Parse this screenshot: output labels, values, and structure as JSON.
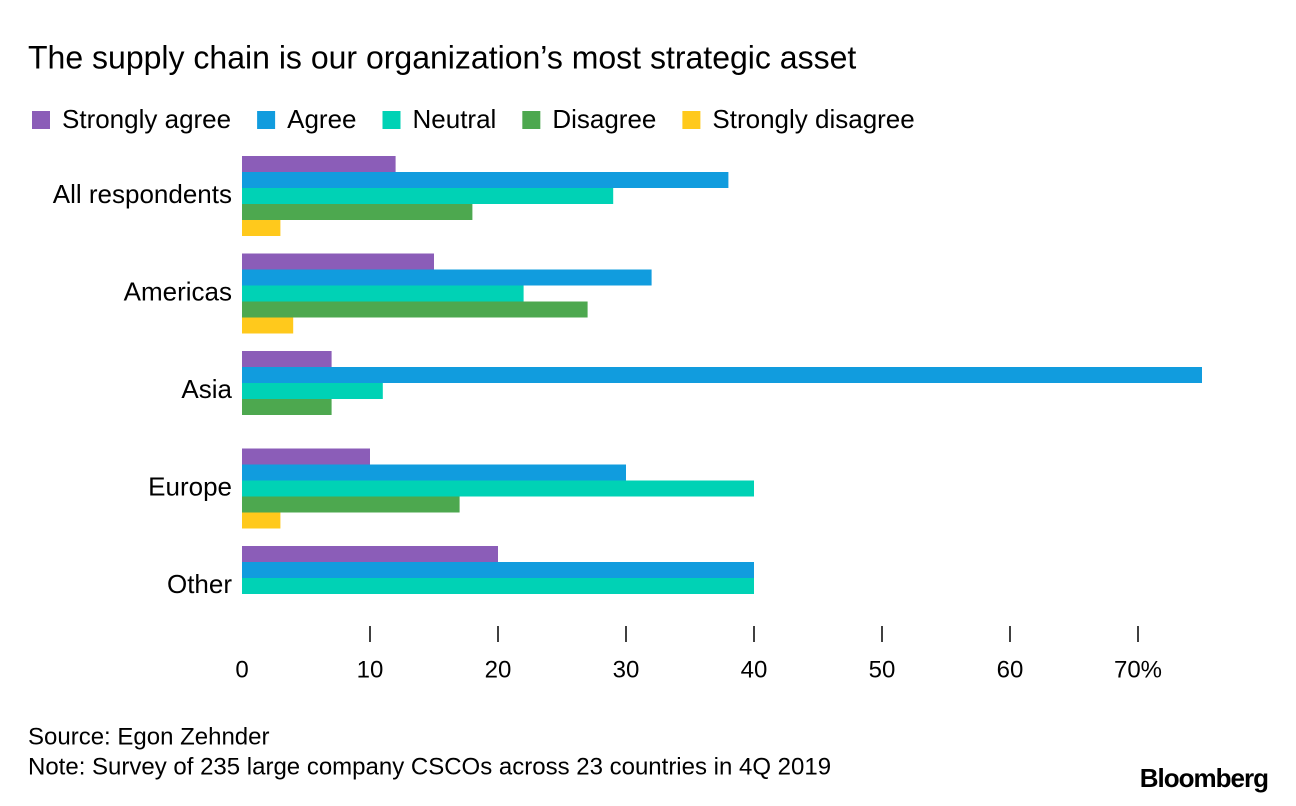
{
  "chart_data": {
    "type": "grouped-hbar",
    "title": "The supply chain is our organization’s most strategic asset",
    "categories": [
      "All respondents",
      "Americas",
      "Asia",
      "Europe",
      "Other"
    ],
    "series": [
      {
        "name": "Strongly agree",
        "color": "#8b5db8",
        "values": [
          12,
          15,
          7,
          10,
          20
        ]
      },
      {
        "name": "Agree",
        "color": "#119cde",
        "values": [
          38,
          32,
          75,
          30,
          40
        ]
      },
      {
        "name": "Neutral",
        "color": "#00d2b5",
        "values": [
          29,
          22,
          11,
          40,
          40
        ]
      },
      {
        "name": "Disagree",
        "color": "#4da84f",
        "values": [
          18,
          27,
          7,
          17,
          0
        ]
      },
      {
        "name": "Strongly disagree",
        "color": "#ffc91c",
        "values": [
          3,
          4,
          0,
          3,
          0
        ]
      }
    ],
    "xlim": [
      0,
      75
    ],
    "xticks": [
      0,
      10,
      20,
      30,
      40,
      50,
      60,
      {
        "value": 70,
        "label": "70%"
      }
    ],
    "source": "Source: Egon Zehnder",
    "note": "Note: Survey of 235 large company CSCOs across 23 countries in 4Q 2019",
    "logo": "Bloomberg"
  }
}
